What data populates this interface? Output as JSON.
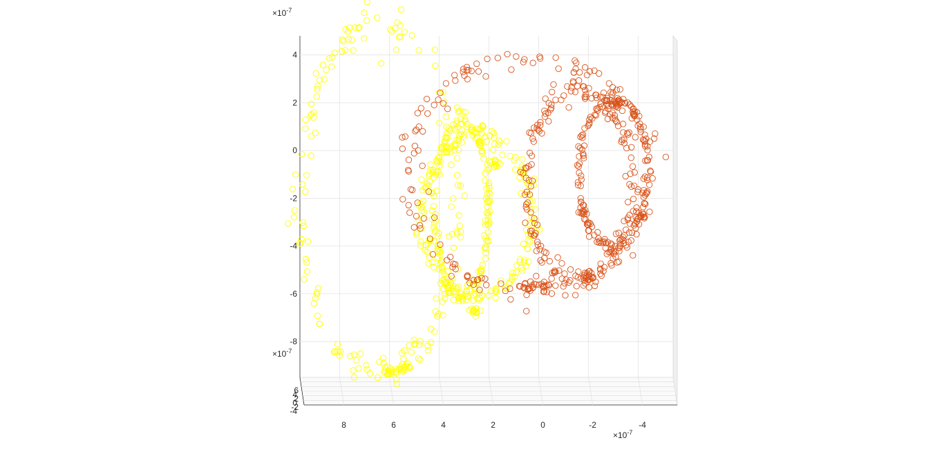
{
  "chart_data": {
    "type": "scatter",
    "view": "3d",
    "title": "",
    "xlabel": "",
    "ylabel": "",
    "zlabel": "",
    "grid": true,
    "marker": "open-circle",
    "x_axis": {
      "exponent_label": "×10",
      "exponent_power": "-7",
      "ticks": [
        "8",
        "6",
        "4",
        "2",
        "0",
        "-2",
        "-4"
      ],
      "lim": [
        9.6,
        -5.4
      ]
    },
    "y_axis": {
      "exponent_label": "×10",
      "exponent_power": "-7",
      "ticks": [
        "4",
        "2",
        "0",
        "-2",
        "-4",
        "-6",
        "-8"
      ],
      "lim": [
        -9.5,
        4.8
      ]
    },
    "z_axis": {
      "exponent_label": "×10",
      "exponent_power": "-7",
      "ticks": [
        "6",
        "4",
        "2",
        "0",
        "-2",
        "-4"
      ]
    },
    "series": [
      {
        "color": "#ffff00",
        "rings": [
          {
            "cx": 6.4,
            "cy": -2.0,
            "rx": 3.2,
            "ry": 7.3
          },
          {
            "cx": 3.1,
            "cy": -2.4,
            "rx": 1.1,
            "ry": 3.6
          },
          {
            "cx": 2.5,
            "cy": -2.8,
            "rx": 2.2,
            "ry": 3.4
          }
        ],
        "clusters": [
          [
            6.0,
            -9.2
          ],
          [
            5.4,
            -9.1
          ],
          [
            1.8,
            -0.5
          ],
          [
            2.6,
            -6.7
          ]
        ]
      },
      {
        "color": "#d95319",
        "rings": [
          {
            "cx": 0.4,
            "cy": -1.0,
            "rx": 4.8,
            "ry": 4.9
          },
          {
            "cx": -1.6,
            "cy": -1.5,
            "rx": 2.1,
            "ry": 4.0
          },
          {
            "cx": -3.0,
            "cy": -1.0,
            "rx": 1.4,
            "ry": 3.1
          }
        ],
        "clusters": [
          [
            0.4,
            -5.7
          ],
          [
            -0.2,
            -5.7
          ],
          [
            -3.1,
            2.0
          ],
          [
            -1.9,
            -5.4
          ]
        ]
      }
    ]
  }
}
